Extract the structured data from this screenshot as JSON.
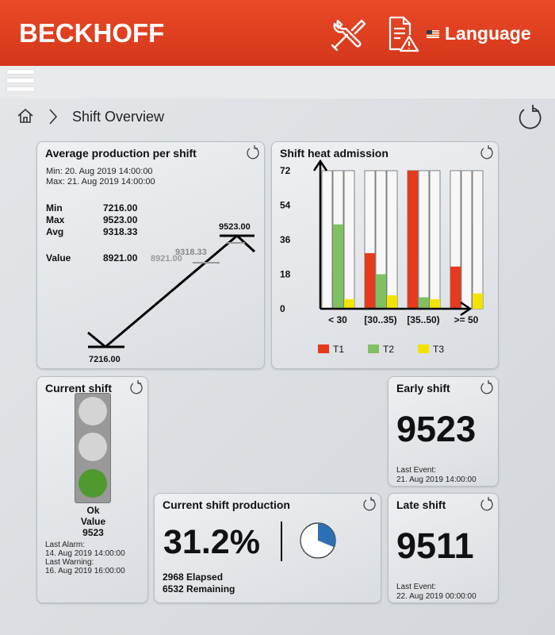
{
  "header": {
    "brand": "BECKHOFF",
    "language_label": "Language",
    "colors": {
      "bar": "#d93b1d"
    }
  },
  "breadcrumb": {
    "title": "Shift Overview"
  },
  "avg_card": {
    "title": "Average production per shift",
    "min_time": "Min:  20. Aug 2019 14:00:00",
    "max_time": "Max: 21. Aug 2019 14:00:00",
    "rows": [
      {
        "label": "Min",
        "value": "7216.00"
      },
      {
        "label": "Max",
        "value": "9523.00"
      },
      {
        "label": "Avg",
        "value": "9318.33"
      }
    ],
    "value_label": "Value",
    "value": "8921.00",
    "chart_value_label": "8921.00",
    "chart_avg_label": "9318.33",
    "chart_max_label": "9523.00",
    "chart_min_label": "7216.00"
  },
  "heat_card": {
    "title": "Shift heat admission",
    "legend": [
      "T1",
      "T2",
      "T3"
    ]
  },
  "chart_data": {
    "type": "bar",
    "title": "Shift heat admission",
    "categories": [
      "< 30",
      "[30..35)",
      "[35..50)",
      ">= 50"
    ],
    "series": [
      {
        "name": "T1",
        "color": "#e53a1e",
        "values": [
          0,
          29,
          72,
          22
        ]
      },
      {
        "name": "T2",
        "color": "#7fc160",
        "values": [
          44,
          18,
          6,
          0
        ]
      },
      {
        "name": "T3",
        "color": "#f2e400",
        "values": [
          5,
          7,
          5,
          8
        ]
      }
    ],
    "y_ticks": [
      "72",
      "54",
      "36",
      "18",
      "0"
    ],
    "ylim": [
      0,
      72
    ]
  },
  "current_shift": {
    "title": "Current shift",
    "status": "Ok",
    "value_label": "Value",
    "value": "9523",
    "last_alarm_label": "Last Alarm:",
    "last_alarm": "14. Aug 2019 14:00:00",
    "last_warning_label": "Last Warning:",
    "last_warning": "16. Aug 2019 16:00:00",
    "lights": {
      "red": "#d4d4d4",
      "yellow": "#d4d4d4",
      "green": "#4f9a2e"
    }
  },
  "production": {
    "title": "Current shift production",
    "percent": "31.2%",
    "percent_value": 31.2,
    "elapsed": "2968 Elapsed",
    "remaining": "6532 Remaining"
  },
  "early_shift": {
    "title": "Early shift",
    "value": "9523",
    "last_event_label": "Last Event:",
    "last_event": "21. Aug 2019 14:00:00"
  },
  "late_shift": {
    "title": "Late shift",
    "value": "9511",
    "last_event_label": "Last Event:",
    "last_event": "22. Aug 2019 00:00:00"
  }
}
